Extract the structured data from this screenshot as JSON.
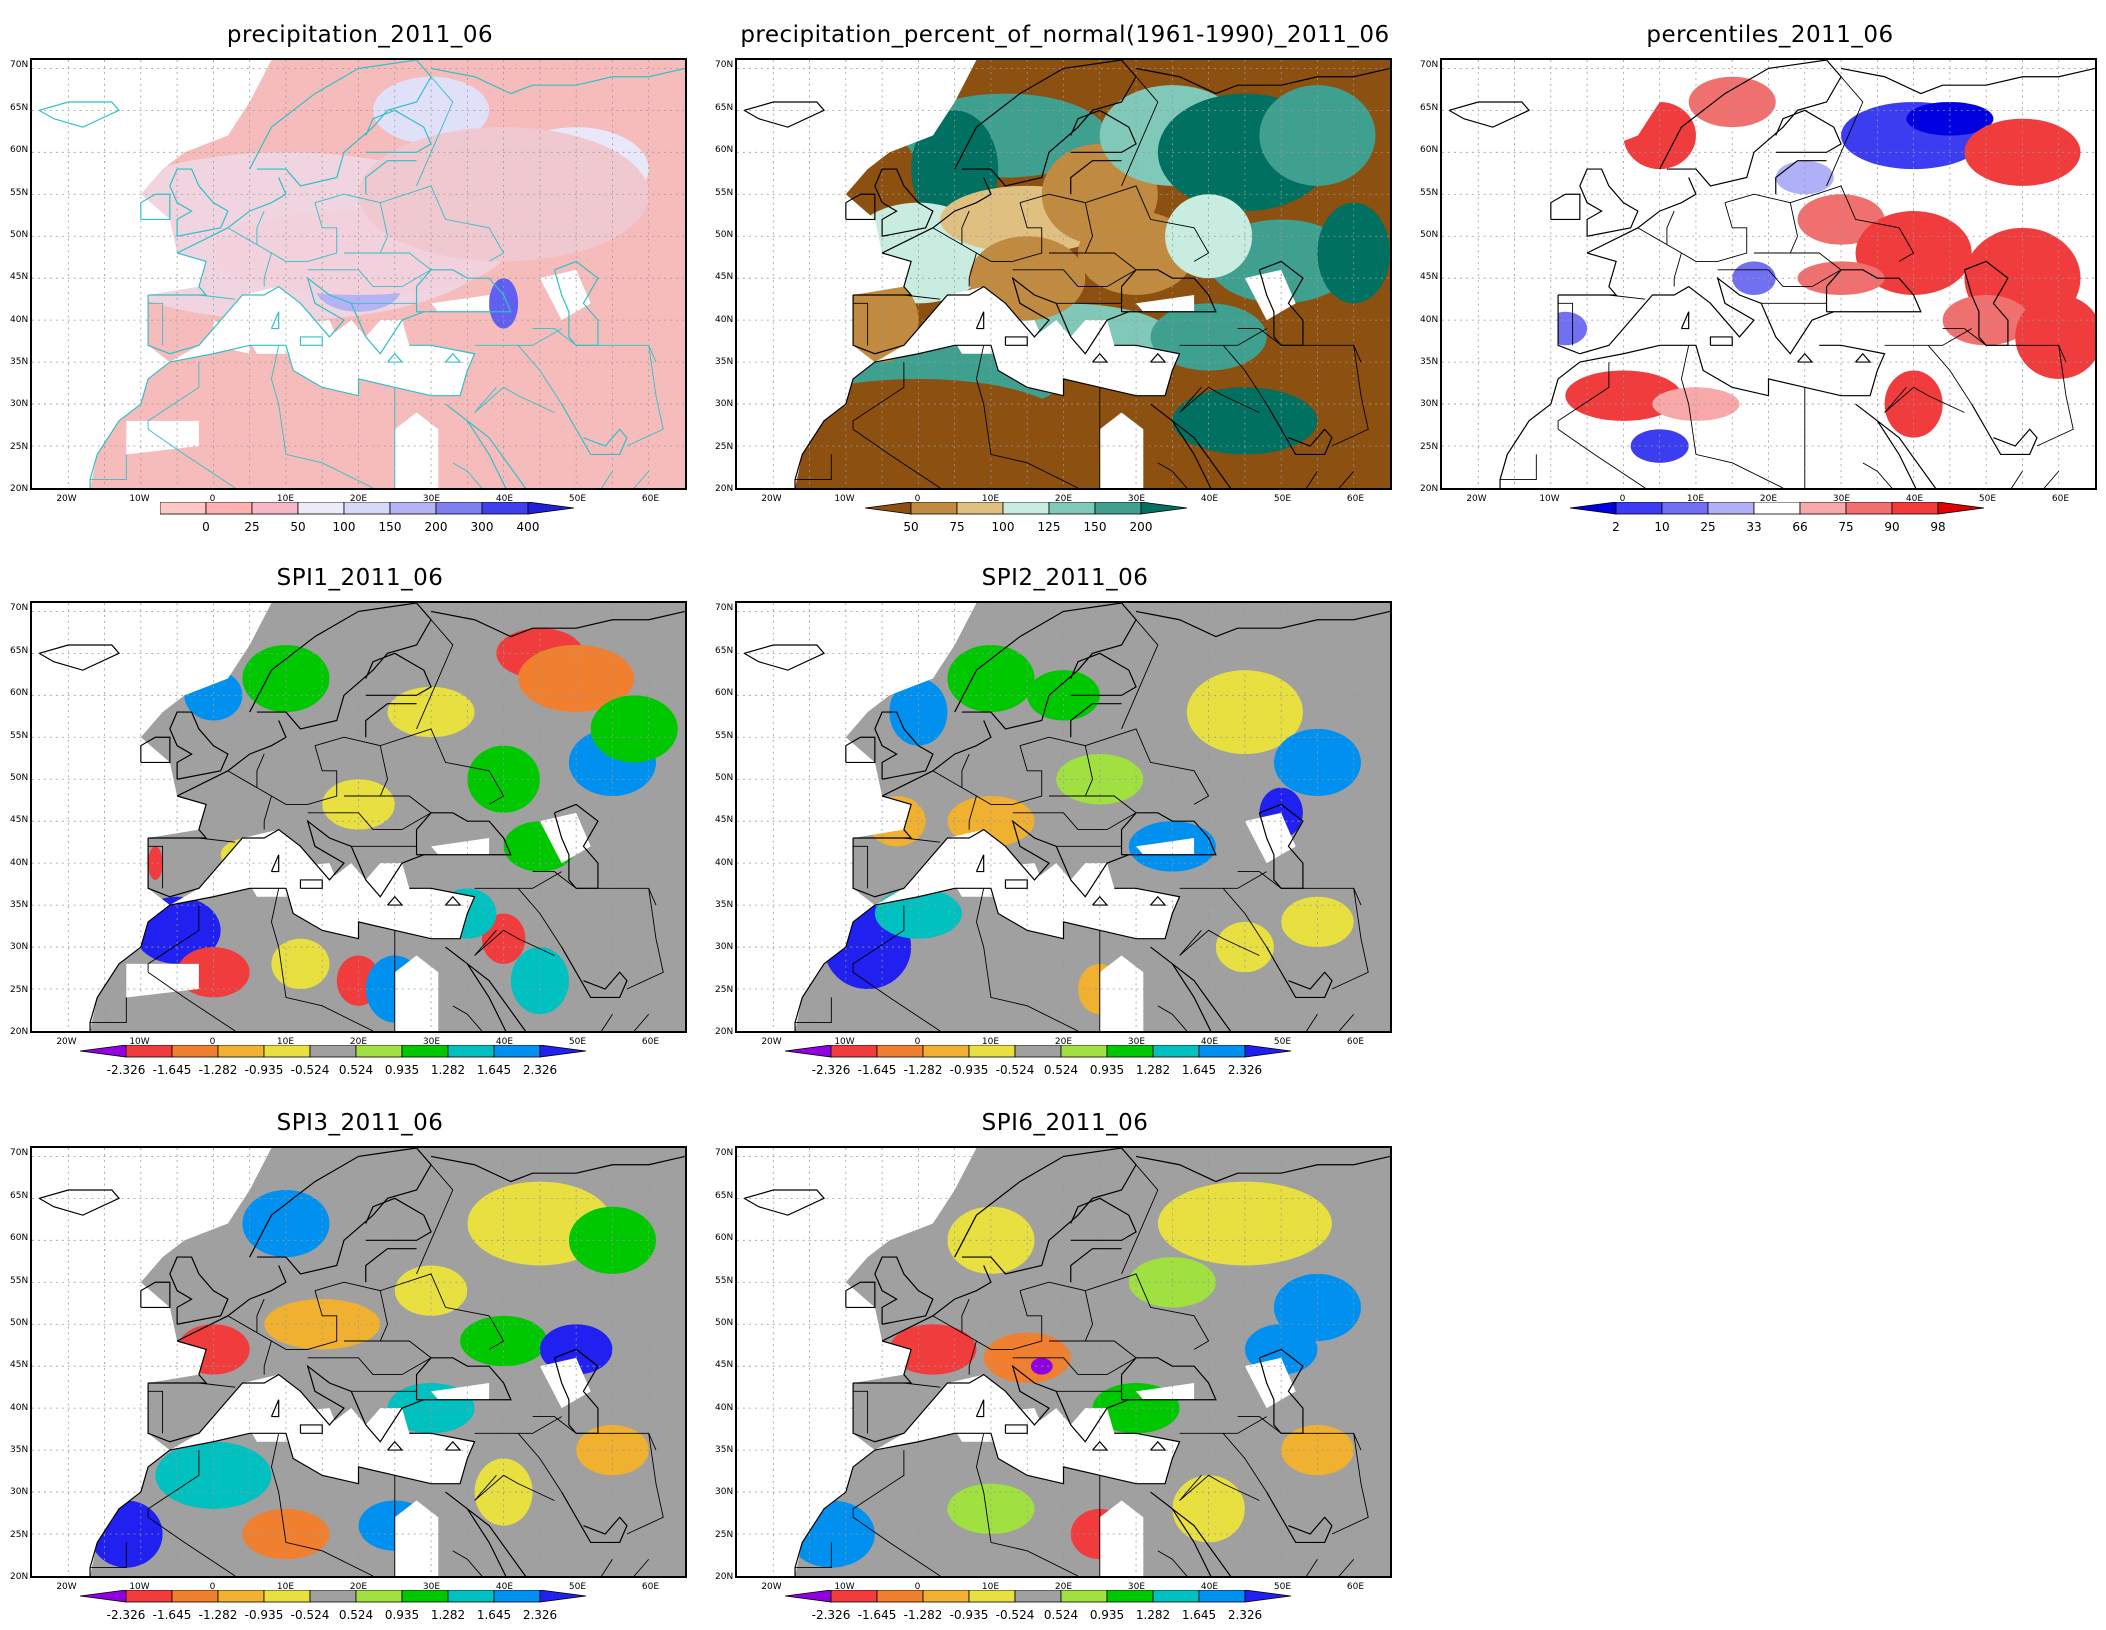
{
  "panels": [
    {
      "id": "precip",
      "title": "precipitation_2011_06",
      "lat_labels": [
        "70N",
        "65N",
        "60N",
        "55N",
        "50N",
        "45N",
        "40N",
        "35N",
        "30N",
        "25N",
        "20N"
      ],
      "lon_labels": [
        "20W",
        "10W",
        "0",
        "10E",
        "20E",
        "30E",
        "40E",
        "50E",
        "60E"
      ],
      "colorbar": {
        "labels": [
          "0",
          "25",
          "50",
          "100",
          "150",
          "200",
          "300",
          "400"
        ],
        "colors": [
          "#ffc8c8",
          "#ffb0b0",
          "#f4b8c8",
          "#ececf8",
          "#d8d8f8",
          "#b4b4f4",
          "#8080f0",
          "#4040e8",
          "#2020d8"
        ],
        "arrows": "right"
      },
      "map_style": "precip"
    },
    {
      "id": "percent",
      "title": "precipitation_percent_of_normal(1961-1990)_2011_06",
      "lat_labels": [
        "70N",
        "65N",
        "60N",
        "55N",
        "50N",
        "45N",
        "40N",
        "35N",
        "30N",
        "25N",
        "20N"
      ],
      "lon_labels": [
        "20W",
        "10W",
        "0",
        "10E",
        "20E",
        "30E",
        "40E",
        "50E",
        "60E"
      ],
      "colorbar": {
        "labels": [
          "50",
          "75",
          "100",
          "125",
          "150",
          "200"
        ],
        "colors": [
          "#8c5010",
          "#c08a40",
          "#e0c080",
          "#c8ece0",
          "#80c8b8",
          "#40a090",
          "#007060"
        ],
        "arrows": "both"
      },
      "map_style": "percent"
    },
    {
      "id": "percentiles",
      "title": "percentiles_2011_06",
      "lat_labels": [
        "70N",
        "65N",
        "60N",
        "55N",
        "50N",
        "45N",
        "40N",
        "35N",
        "30N",
        "25N",
        "20N"
      ],
      "lon_labels": [
        "20W",
        "10W",
        "0",
        "10E",
        "20E",
        "30E",
        "40E",
        "50E",
        "60E"
      ],
      "colorbar": {
        "labels": [
          "2",
          "10",
          "25",
          "33",
          "66",
          "75",
          "90",
          "98"
        ],
        "colors": [
          "#0000e0",
          "#3c3cf0",
          "#7070f0",
          "#b0b0f8",
          "#ffffff",
          "#f8a8a8",
          "#f07070",
          "#f03c3c",
          "#e00000"
        ],
        "arrows": "both"
      },
      "map_style": "percentiles"
    },
    {
      "id": "spi1",
      "title": "SPI1_2011_06",
      "lat_labels": [
        "70N",
        "65N",
        "60N",
        "55N",
        "50N",
        "45N",
        "40N",
        "35N",
        "30N",
        "25N",
        "20N"
      ],
      "lon_labels": [
        "20W",
        "10W",
        "0",
        "10E",
        "20E",
        "30E",
        "40E",
        "50E",
        "60E"
      ],
      "colorbar": {
        "labels": [
          "-2.326",
          "-1.645",
          "-1.282",
          "-0.935",
          "-0.524",
          "0.524",
          "0.935",
          "1.282",
          "1.645",
          "2.326"
        ],
        "colors": [
          "#9000e0",
          "#f03c3c",
          "#f08030",
          "#f0b030",
          "#e8e040",
          "#a0a0a0",
          "#a0e040",
          "#00c800",
          "#00c0c0",
          "#0090f0",
          "#2020f0"
        ],
        "arrows": "both"
      },
      "map_style": "spi1"
    },
    {
      "id": "spi2",
      "title": "SPI2_2011_06",
      "lat_labels": [
        "70N",
        "65N",
        "60N",
        "55N",
        "50N",
        "45N",
        "40N",
        "35N",
        "30N",
        "25N",
        "20N"
      ],
      "lon_labels": [
        "20W",
        "10W",
        "0",
        "10E",
        "20E",
        "30E",
        "40E",
        "50E",
        "60E"
      ],
      "colorbar": {
        "labels": [
          "-2.326",
          "-1.645",
          "-1.282",
          "-0.935",
          "-0.524",
          "0.524",
          "0.935",
          "1.282",
          "1.645",
          "2.326"
        ],
        "colors": [
          "#9000e0",
          "#f03c3c",
          "#f08030",
          "#f0b030",
          "#e8e040",
          "#a0a0a0",
          "#a0e040",
          "#00c800",
          "#00c0c0",
          "#0090f0",
          "#2020f0"
        ],
        "arrows": "both"
      },
      "map_style": "spi2"
    },
    {
      "id": "spi3",
      "title": "SPI3_2011_06",
      "lat_labels": [
        "70N",
        "65N",
        "60N",
        "55N",
        "50N",
        "45N",
        "40N",
        "35N",
        "30N",
        "25N",
        "20N"
      ],
      "lon_labels": [
        "20W",
        "10W",
        "0",
        "10E",
        "20E",
        "30E",
        "40E",
        "50E",
        "60E"
      ],
      "colorbar": {
        "labels": [
          "-2.326",
          "-1.645",
          "-1.282",
          "-0.935",
          "-0.524",
          "0.524",
          "0.935",
          "1.282",
          "1.645",
          "2.326"
        ],
        "colors": [
          "#9000e0",
          "#f03c3c",
          "#f08030",
          "#f0b030",
          "#e8e040",
          "#a0a0a0",
          "#a0e040",
          "#00c800",
          "#00c0c0",
          "#0090f0",
          "#2020f0"
        ],
        "arrows": "both"
      },
      "map_style": "spi3"
    },
    {
      "id": "spi6",
      "title": "SPI6_2011_06",
      "lat_labels": [
        "70N",
        "65N",
        "60N",
        "55N",
        "50N",
        "45N",
        "40N",
        "35N",
        "30N",
        "25N",
        "20N"
      ],
      "lon_labels": [
        "20W",
        "10W",
        "0",
        "10E",
        "20E",
        "30E",
        "40E",
        "50E",
        "60E"
      ],
      "colorbar": {
        "labels": [
          "-2.326",
          "-1.645",
          "-1.282",
          "-0.935",
          "-0.524",
          "0.524",
          "0.935",
          "1.282",
          "1.645",
          "2.326"
        ],
        "colors": [
          "#9000e0",
          "#f03c3c",
          "#f08030",
          "#f0b030",
          "#e8e040",
          "#a0a0a0",
          "#a0e040",
          "#00c800",
          "#00c0c0",
          "#0090f0",
          "#2020f0"
        ],
        "arrows": "both"
      },
      "map_style": "spi6"
    }
  ]
}
